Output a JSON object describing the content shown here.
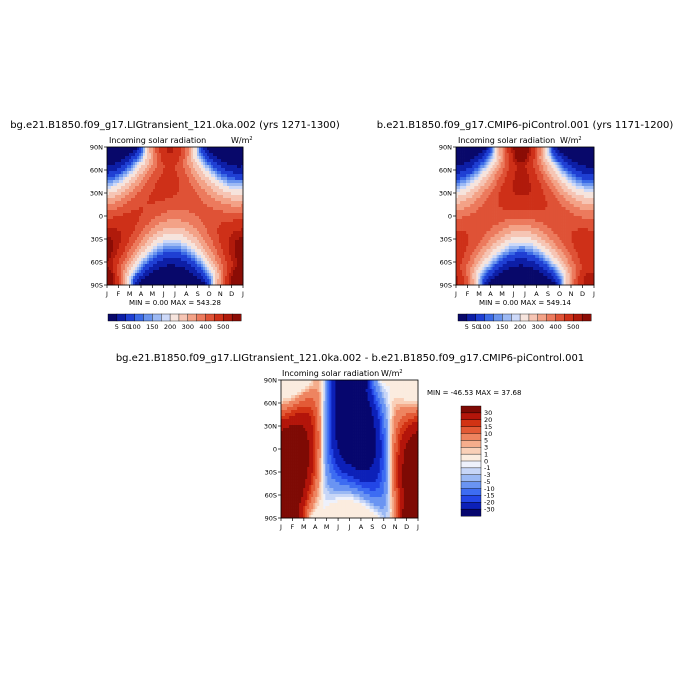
{
  "panels": [
    {
      "id": "top-left",
      "title": "bg.e21.B1850.f09_g17.LIGtransient_121.0ka.002 (yrs 1271-1300)",
      "subtitle": "Incoming solar radiation",
      "units": "W/m",
      "units_sup": "2",
      "stats": "MIN =    0.00 MAX = 543.28"
    },
    {
      "id": "top-right",
      "title": "b.e21.B1850.f09_g17.CMIP6-piControl.001 (yrs 1171-1200)",
      "subtitle": "Incoming solar radiation",
      "units": "W/m",
      "units_sup": "2",
      "stats": "MIN =    0.00 MAX = 549.14"
    },
    {
      "id": "bottom-diff",
      "title": "bg.e21.B1850.f09_g17.LIGtransient_121.0ka.002 - b.e21.B1850.f09_g17.CMIP6-piControl.001",
      "subtitle": "Incoming solar radiation",
      "units": "W/m",
      "units_sup": "2",
      "stats": "MIN = -46.53 MAX =  37.68"
    }
  ],
  "chart_data": [
    {
      "type": "heatmap",
      "title": "bg.e21.B1850.f09_g17.LIGtransient_121.0ka.002 (yrs 1271-1300)",
      "x_ticks": [
        "J",
        "F",
        "M",
        "A",
        "M",
        "J",
        "J",
        "A",
        "S",
        "O",
        "N",
        "D",
        "J"
      ],
      "y_ticks": [
        "90N",
        "60N",
        "30N",
        "0",
        "30S",
        "60S",
        "90S"
      ],
      "y_range": [
        -90,
        90
      ],
      "min": 0.0,
      "max": 543.28,
      "colorbar_labels": [
        "5",
        "50",
        "100",
        "150",
        "200",
        "300",
        "400",
        "500"
      ],
      "orbital_case": "LIG"
    },
    {
      "type": "heatmap",
      "title": "b.e21.B1850.f09_g17.CMIP6-piControl.001 (yrs 1171-1200)",
      "x_ticks": [
        "J",
        "F",
        "M",
        "A",
        "M",
        "J",
        "J",
        "A",
        "S",
        "O",
        "N",
        "D",
        "J"
      ],
      "y_ticks": [
        "90N",
        "60N",
        "30N",
        "0",
        "30S",
        "60S",
        "90S"
      ],
      "y_range": [
        -90,
        90
      ],
      "min": 0.0,
      "max": 549.14,
      "colorbar_labels": [
        "5",
        "50",
        "100",
        "150",
        "200",
        "300",
        "400",
        "500"
      ],
      "orbital_case": "PI"
    },
    {
      "type": "heatmap",
      "title": "bg.e21.B1850.f09_g17.LIGtransient_121.0ka.002 - b.e21.B1850.f09_g17.CMIP6-piControl.001",
      "x_ticks": [
        "J",
        "F",
        "M",
        "A",
        "M",
        "J",
        "J",
        "A",
        "S",
        "O",
        "N",
        "D",
        "J"
      ],
      "y_ticks": [
        "90N",
        "60N",
        "30N",
        "0",
        "30S",
        "60S",
        "90S"
      ],
      "y_range": [
        -90,
        90
      ],
      "min": -46.53,
      "max": 37.68,
      "colorbar_labels": [
        "30",
        "20",
        "15",
        "10",
        "5",
        "3",
        "1",
        "0",
        "-1",
        "-3",
        "-5",
        "-10",
        "-15",
        "-20",
        "-30"
      ],
      "orbital_case": "DIFF"
    }
  ],
  "colors": {
    "abs_palette": [
      "#08086a",
      "#0d1ea6",
      "#1f3fd3",
      "#3b6ae6",
      "#6a94ee",
      "#9dbaf4",
      "#cdd9f8",
      "#f6e4dd",
      "#f6c5b4",
      "#f3a287",
      "#ec7a5d",
      "#df5236",
      "#ce3018",
      "#b01a0b",
      "#8b0c05"
    ],
    "diff_palette": [
      "#06066e",
      "#0c20b8",
      "#2346e6",
      "#3d6cf2",
      "#6a94f2",
      "#9bb9f4",
      "#c7d6f7",
      "#eef1fb",
      "#fbecdf",
      "#f9d0b8",
      "#f5ad8c",
      "#ee8460",
      "#e35a36",
      "#d23314",
      "#b3150a",
      "#7e0a04"
    ]
  }
}
